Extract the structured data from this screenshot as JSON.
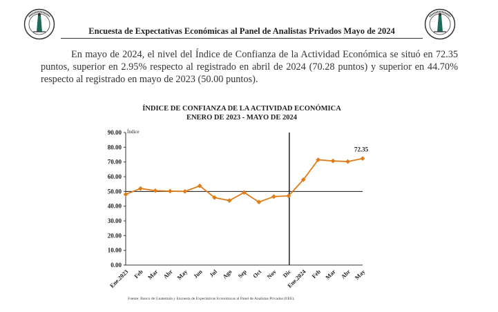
{
  "header": {
    "title": "Encuesta de Expectativas Económicas al Panel de Analistas Privados Mayo de 2024",
    "logo_text": "BANCO DE GUATEMALA"
  },
  "paragraph": "En mayo de 2024, el nivel del Índice de Confianza de la Actividad Económica se situó en 72.35 puntos, superior en 2.95% respecto al registrado en abril de 2024 (70.28 puntos) y superior en 44.70% respecto al registrado en mayo de 2023 (50.00 puntos).",
  "chart_data": {
    "type": "line",
    "title_line1": "ÍNDICE DE CONFIANZA DE LA ACTIVIDAD ECONÓMICA",
    "title_line2": "ENERO DE 2023 - MAYO DE 2024",
    "ylabel": "Índice",
    "ylim": [
      0,
      90
    ],
    "yticks": [
      "0.00",
      "10.00",
      "20.00",
      "30.00",
      "40.00",
      "50.00",
      "60.00",
      "70.00",
      "80.00",
      "90.00"
    ],
    "categories": [
      "Ene.2023",
      "Feb",
      "Mar",
      "Abr",
      "May",
      "Jun",
      "Jul",
      "Ago",
      "Sep",
      "Oct",
      "Nov",
      "Dic",
      "Ene.2024",
      "Feb",
      "Mar",
      "Abr",
      "May"
    ],
    "values": [
      48.0,
      52.0,
      50.5,
      50.2,
      50.0,
      53.8,
      45.8,
      43.8,
      49.3,
      42.8,
      46.5,
      47.0,
      58.0,
      71.5,
      70.7,
      70.28,
      72.35
    ],
    "reference_line": 50,
    "divider_after": "Dic",
    "last_label": "72.35",
    "line_color": "#e07b17"
  },
  "source": "Fuente: Banco de Guatemala y Encuesta de Expectativas Económicas al Panel de Analistas Privados (EEE)."
}
